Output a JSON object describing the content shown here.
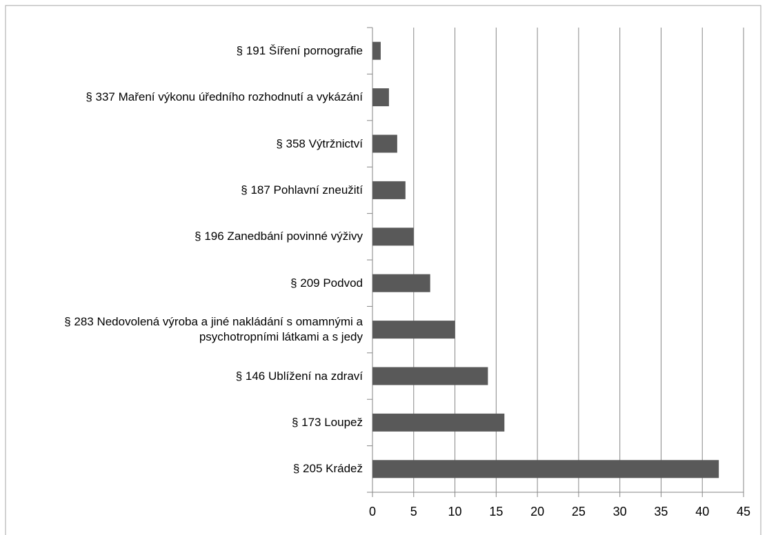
{
  "chart_data": {
    "type": "bar",
    "orientation": "horizontal",
    "categories": [
      "§ 191 Šíření pornografie",
      "§ 337 Maření výkonu úředního rozhodnutí a vykázání",
      "§ 358 Výtržnictví",
      "§ 187 Pohlavní zneužití",
      "§ 196 Zanedbání povinné výživy",
      "§ 209 Podvod",
      "§ 283 Nedovolená výroba a jiné nakládání s omamnými a psychotropními látkami a s jedy",
      "§ 146 Ublížení na zdraví",
      "§ 173 Loupež",
      "§ 205 Krádež"
    ],
    "values": [
      1,
      2,
      3,
      4,
      5,
      7,
      10,
      14,
      16,
      42
    ],
    "color": "#595959",
    "xlim": [
      0,
      45
    ],
    "xticks": [
      0,
      5,
      10,
      15,
      20,
      25,
      30,
      35,
      40,
      45
    ],
    "grid": true
  }
}
